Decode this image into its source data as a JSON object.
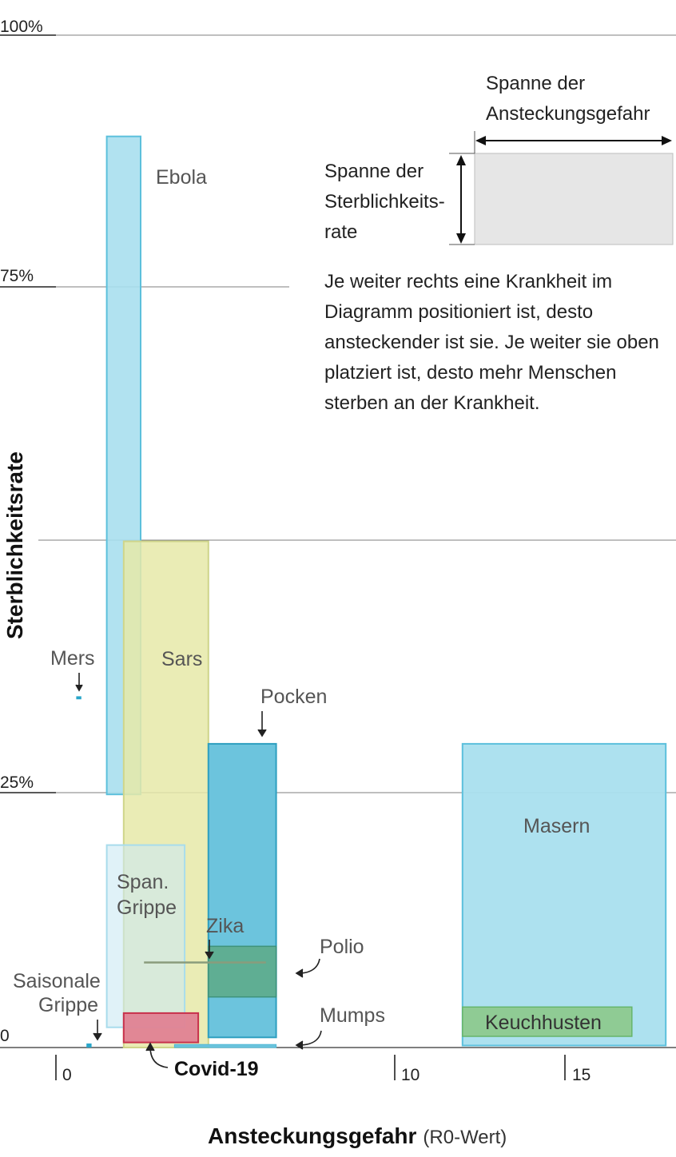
{
  "chart_data": {
    "type": "range-box",
    "xlabel": "Ansteckungsgefahr",
    "xlabel_sub": "(R0-Wert)",
    "ylabel": "Sterblichkeitsrate",
    "xlim": [
      -0.5,
      18
    ],
    "ylim": [
      0,
      100
    ],
    "x_ticks": [
      {
        "value": 0,
        "label": "0"
      },
      {
        "value": 10,
        "label": "10"
      },
      {
        "value": 15,
        "label": "15"
      }
    ],
    "y_ticks": [
      {
        "value": 0,
        "label": "0"
      },
      {
        "value": 25,
        "label": "25%"
      },
      {
        "value": 75,
        "label": "75%"
      },
      {
        "value": 100,
        "label": "100%"
      }
    ],
    "y_gridlines": [
      25,
      50,
      75,
      100
    ],
    "diseases": [
      {
        "name": "Ebola",
        "x": [
          1.5,
          2.5
        ],
        "y": [
          25,
          90
        ],
        "color": "#a9dfee"
      },
      {
        "name": "Sars",
        "x": [
          2,
          4.5
        ],
        "y": [
          0,
          50
        ],
        "color": "#e6e9a8"
      },
      {
        "name": "Span. Grippe",
        "x": [
          1.5,
          3.8
        ],
        "y": [
          2,
          20
        ],
        "color": "#cbeaf3"
      },
      {
        "name": "Pocken",
        "x": [
          4.5,
          6.5
        ],
        "y": [
          1,
          30
        ],
        "color": "#6cc4dd"
      },
      {
        "name": "Polio",
        "x": [
          4.5,
          6.5
        ],
        "y": [
          5,
          10
        ],
        "color": "#5fad8e"
      },
      {
        "name": "Mumps",
        "x": [
          3.5,
          6.5
        ],
        "y": [
          0,
          0.3
        ],
        "color": "#6cc4dd"
      },
      {
        "name": "Zika",
        "x": [
          2.6,
          6.2
        ],
        "y": [
          8.3,
          8.5
        ],
        "color": "#8a9c7c"
      },
      {
        "name": "Covid-19",
        "x": [
          2,
          4.2
        ],
        "y": [
          0.5,
          3.4
        ],
        "color": "#e08294"
      },
      {
        "name": "Saisonale Grippe",
        "x": [
          0.9,
          1.05
        ],
        "y": [
          0,
          0.4
        ],
        "color": "#2aa6c9"
      },
      {
        "name": "Mers",
        "x": [
          0.6,
          0.75
        ],
        "y": [
          34.4,
          34.7
        ],
        "color": "#2aa6c9"
      },
      {
        "name": "Masern",
        "x": [
          12,
          18
        ],
        "y": [
          0.2,
          30
        ],
        "color": "#a9dfee"
      },
      {
        "name": "Keuchhusten",
        "x": [
          12,
          17
        ],
        "y": [
          1.1,
          4
        ],
        "color": "#8cc98a"
      }
    ],
    "legend": {
      "x_span_label": "Spanne der Ansteckungsgefahr",
      "y_span_label": "Spanne der Sterblichkeits-rate"
    },
    "note": "Je weiter rechts eine Krankheit im Diagramm positioniert ist, desto ansteckender ist sie. Je weiter sie oben platziert ist, desto mehr Menschen sterben an der Krankheit."
  }
}
